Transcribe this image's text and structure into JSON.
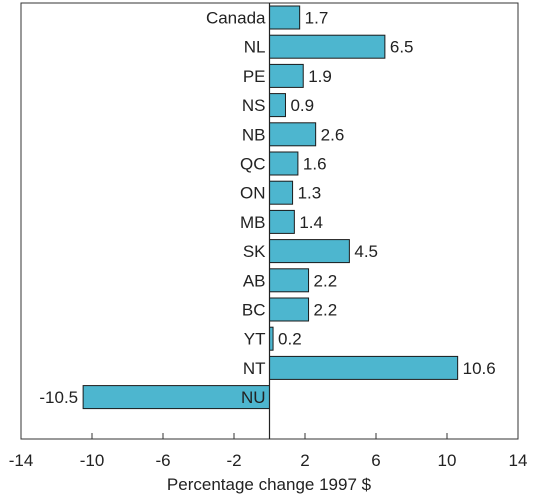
{
  "chart_data": {
    "type": "bar",
    "orientation": "horizontal",
    "categories": [
      "Canada",
      "NL",
      "PE",
      "NS",
      "NB",
      "QC",
      "ON",
      "MB",
      "SK",
      "AB",
      "BC",
      "YT",
      "NT",
      "NU"
    ],
    "values": [
      1.7,
      6.5,
      1.9,
      0.9,
      2.6,
      1.6,
      1.3,
      1.4,
      4.5,
      2.2,
      2.2,
      0.2,
      10.6,
      -10.5
    ],
    "value_labels": [
      "1.7",
      "6.5",
      "1.9",
      "0.9",
      "2.6",
      "1.6",
      "1.3",
      "1.4",
      "4.5",
      "2.2",
      "2.2",
      "0.2",
      "10.6",
      "-10.5"
    ],
    "xlabel": "Percentage change 1997 $",
    "ylabel": "",
    "xlim": [
      -14,
      14
    ],
    "xticks": [
      -14,
      -10,
      -6,
      -2,
      2,
      6,
      10,
      14
    ],
    "xtick_labels": [
      "-14",
      "-10",
      "-6",
      "-2",
      "2",
      "6",
      "10",
      "14"
    ],
    "grid": false,
    "legend": "none",
    "bar_color": "#4db6cf",
    "bar_edge_color": "#1a1a1a"
  }
}
